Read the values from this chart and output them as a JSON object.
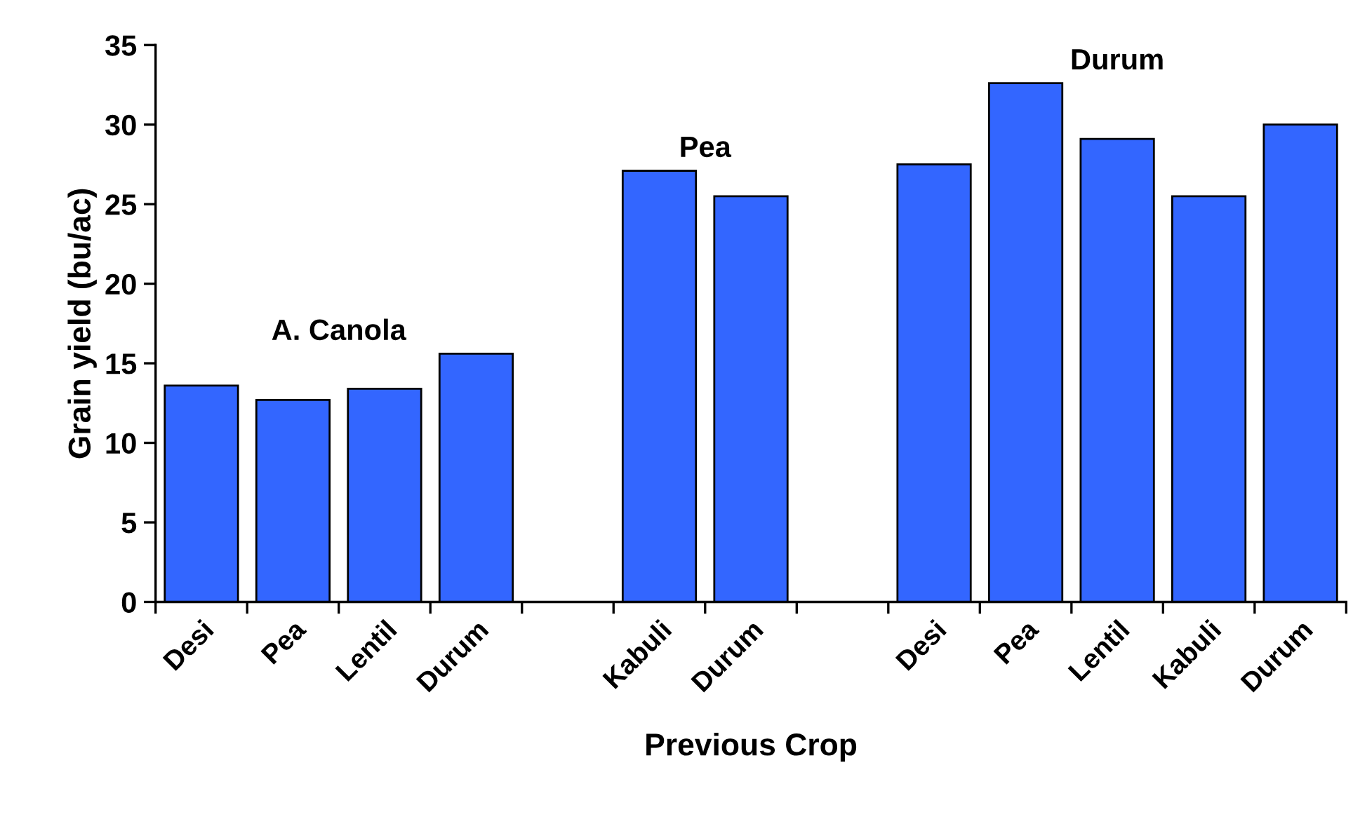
{
  "chart_data": {
    "type": "bar",
    "xlabel": "Previous Crop",
    "ylabel": "Grain yield (bu/ac)",
    "categories": [
      "Desi",
      "Pea",
      "Lentil",
      "Durum",
      null,
      "Kabuli",
      "Durum",
      null,
      "Desi",
      "Pea",
      "Lentil",
      "Kabuli",
      "Durum"
    ],
    "values": [
      13.6,
      12.7,
      13.4,
      15.6,
      null,
      27.1,
      25.5,
      null,
      27.5,
      32.6,
      29.1,
      25.5,
      30.0
    ],
    "color": "#3366ff",
    "ylim": [
      0,
      35
    ],
    "yticks": [
      0,
      5,
      10,
      15,
      20,
      25,
      30,
      35
    ],
    "grid": false,
    "legend": false,
    "annotations": [
      "A. Canola",
      "Pea",
      "Durum"
    ]
  }
}
